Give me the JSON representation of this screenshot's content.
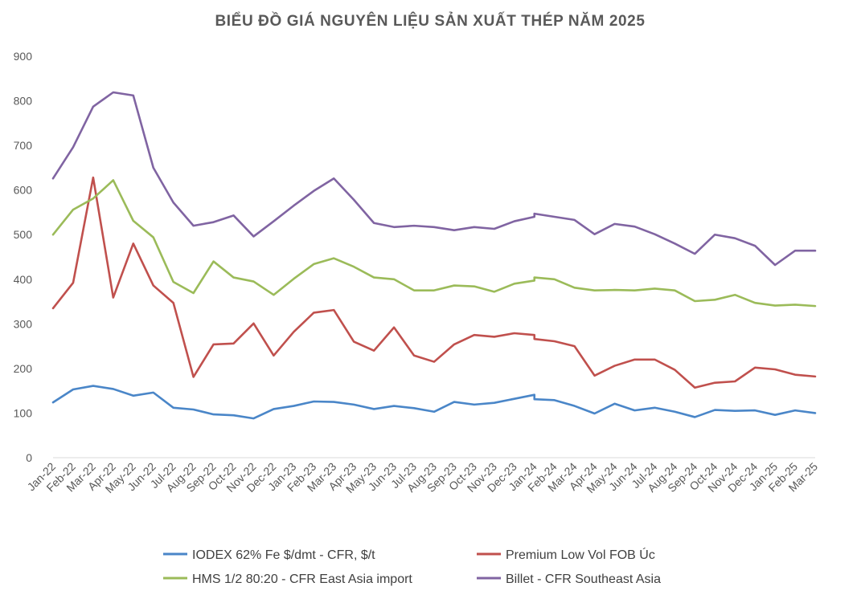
{
  "chart_data": {
    "type": "line",
    "title": "BIỂU ĐỒ GIÁ NGUYÊN LIỆU SẢN XUẤT THÉP NĂM 2025",
    "xlabel": "",
    "ylabel": "",
    "ylim": [
      0,
      900
    ],
    "yticks": [
      0,
      100,
      200,
      300,
      400,
      500,
      600,
      700,
      800,
      900
    ],
    "grid": false,
    "legend_position": "bottom",
    "categories": [
      "Jan-22",
      "Feb-22",
      "Mar-22",
      "Apr-22",
      "May-22",
      "Jun-22",
      "Jul-22",
      "Aug-22",
      "Sep-22",
      "Oct-22",
      "Nov-22",
      "Dec-22",
      "Jan-23",
      "Feb-23",
      "Mar-23",
      "Apr-23",
      "May-23",
      "Jun-23",
      "Jul-23",
      "Aug-23",
      "Sep-23",
      "Oct-23",
      "Nov-23",
      "Dec-23",
      "Jan-24",
      "Feb-24",
      "Mar-24",
      "Apr-24",
      "May-24",
      "Jun-24",
      "Jul-24",
      "Aug-24",
      "Sep-24",
      "Oct-24",
      "Nov-24",
      "Dec-24",
      "Jan-25",
      "Feb-25",
      "Mar-25"
    ],
    "series": [
      {
        "name": "IODEX 62% Fe $/dmt - CFR, $/t",
        "color": "#4a86c8",
        "points": [
          [
            0,
            124
          ],
          [
            1,
            153
          ],
          [
            2,
            161
          ],
          [
            3,
            154
          ],
          [
            4,
            139
          ],
          [
            5,
            146
          ],
          [
            6,
            112
          ],
          [
            7,
            108
          ],
          [
            8,
            97
          ],
          [
            9,
            95
          ],
          [
            10,
            88
          ],
          [
            11,
            109
          ],
          [
            12,
            116
          ],
          [
            13,
            126
          ],
          [
            14,
            125
          ],
          [
            15,
            119
          ],
          [
            16,
            109
          ],
          [
            17,
            116
          ],
          [
            18,
            111
          ],
          [
            19,
            103
          ],
          [
            20,
            125
          ],
          [
            21,
            119
          ],
          [
            22,
            123
          ],
          [
            23,
            132
          ],
          [
            24,
            141
          ],
          [
            24,
            131
          ],
          [
            25,
            129
          ],
          [
            26,
            116
          ],
          [
            27,
            99
          ],
          [
            28,
            121
          ],
          [
            29,
            106
          ],
          [
            30,
            112
          ],
          [
            31,
            103
          ],
          [
            32,
            91
          ],
          [
            33,
            107
          ],
          [
            34,
            105
          ],
          [
            35,
            106
          ],
          [
            36,
            96
          ],
          [
            37,
            106
          ],
          [
            38,
            100
          ]
        ]
      },
      {
        "name": "Premium Low Vol FOB Úc",
        "color": "#c0504d",
        "points": [
          [
            0,
            335
          ],
          [
            1,
            392
          ],
          [
            2,
            628
          ],
          [
            3,
            359
          ],
          [
            4,
            480
          ],
          [
            5,
            386
          ],
          [
            6,
            347
          ],
          [
            7,
            181
          ],
          [
            8,
            254
          ],
          [
            9,
            256
          ],
          [
            10,
            301
          ],
          [
            11,
            229
          ],
          [
            12,
            282
          ],
          [
            13,
            325
          ],
          [
            14,
            331
          ],
          [
            15,
            260
          ],
          [
            16,
            240
          ],
          [
            17,
            292
          ],
          [
            18,
            229
          ],
          [
            19,
            215
          ],
          [
            20,
            254
          ],
          [
            21,
            275
          ],
          [
            22,
            271
          ],
          [
            23,
            279
          ],
          [
            24,
            275
          ],
          [
            24,
            266
          ],
          [
            25,
            261
          ],
          [
            26,
            250
          ],
          [
            27,
            184
          ],
          [
            28,
            206
          ],
          [
            29,
            220
          ],
          [
            30,
            220
          ],
          [
            31,
            197
          ],
          [
            32,
            157
          ],
          [
            33,
            168
          ],
          [
            34,
            171
          ],
          [
            35,
            202
          ],
          [
            36,
            198
          ],
          [
            37,
            186
          ],
          [
            38,
            182
          ]
        ]
      },
      {
        "name": "HMS 1/2 80:20 - CFR East Asia import",
        "color": "#9bbb59",
        "points": [
          [
            0,
            500
          ],
          [
            1,
            556
          ],
          [
            2,
            581
          ],
          [
            3,
            622
          ],
          [
            4,
            531
          ],
          [
            5,
            494
          ],
          [
            6,
            394
          ],
          [
            7,
            369
          ],
          [
            8,
            440
          ],
          [
            9,
            404
          ],
          [
            10,
            395
          ],
          [
            11,
            365
          ],
          [
            12,
            401
          ],
          [
            13,
            434
          ],
          [
            14,
            447
          ],
          [
            15,
            428
          ],
          [
            16,
            404
          ],
          [
            17,
            400
          ],
          [
            18,
            375
          ],
          [
            19,
            375
          ],
          [
            20,
            386
          ],
          [
            21,
            384
          ],
          [
            22,
            372
          ],
          [
            23,
            390
          ],
          [
            24,
            397
          ],
          [
            24,
            404
          ],
          [
            25,
            400
          ],
          [
            26,
            381
          ],
          [
            27,
            375
          ],
          [
            28,
            376
          ],
          [
            29,
            375
          ],
          [
            30,
            379
          ],
          [
            31,
            375
          ],
          [
            32,
            351
          ],
          [
            33,
            354
          ],
          [
            34,
            365
          ],
          [
            35,
            347
          ],
          [
            36,
            341
          ],
          [
            37,
            343
          ],
          [
            38,
            340
          ]
        ]
      },
      {
        "name": "Billet - CFR Southeast Asia",
        "color": "#8064a2",
        "points": [
          [
            0,
            626
          ],
          [
            1,
            696
          ],
          [
            2,
            787
          ],
          [
            3,
            819
          ],
          [
            4,
            812
          ],
          [
            5,
            650
          ],
          [
            6,
            572
          ],
          [
            7,
            520
          ],
          [
            8,
            528
          ],
          [
            9,
            543
          ],
          [
            10,
            496
          ],
          [
            11,
            530
          ],
          [
            12,
            565
          ],
          [
            13,
            598
          ],
          [
            14,
            626
          ],
          [
            15,
            578
          ],
          [
            16,
            526
          ],
          [
            17,
            517
          ],
          [
            18,
            520
          ],
          [
            19,
            517
          ],
          [
            20,
            510
          ],
          [
            21,
            517
          ],
          [
            22,
            513
          ],
          [
            23,
            530
          ],
          [
            24,
            540
          ],
          [
            24,
            547
          ],
          [
            25,
            540
          ],
          [
            26,
            533
          ],
          [
            27,
            501
          ],
          [
            28,
            524
          ],
          [
            29,
            518
          ],
          [
            30,
            501
          ],
          [
            31,
            480
          ],
          [
            32,
            457
          ],
          [
            33,
            500
          ],
          [
            34,
            492
          ],
          [
            35,
            475
          ],
          [
            36,
            432
          ],
          [
            37,
            464
          ],
          [
            38,
            464
          ]
        ]
      }
    ]
  }
}
